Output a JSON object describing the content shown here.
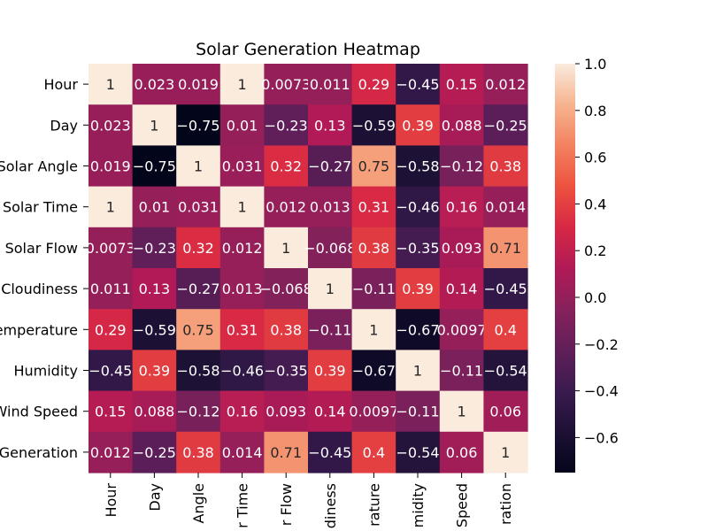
{
  "chart_data": {
    "type": "heatmap",
    "title": "Solar Generation Heatmap",
    "row_labels": [
      "Hour",
      "Day",
      "Solar Angle",
      "Solar Time",
      "Solar Flow",
      "Cloudiness",
      "Temperature",
      "Humidity",
      "Wind Speed",
      "Generation"
    ],
    "col_labels": [
      "Hour",
      "Day",
      "Angle",
      "r Time",
      "r Flow",
      "diness",
      "rature",
      "midity",
      "Speed",
      "ration"
    ],
    "values": [
      [
        1,
        0.023,
        0.019,
        1,
        0.0073,
        0.011,
        0.29,
        -0.45,
        0.15,
        0.012
      ],
      [
        0.023,
        1,
        -0.75,
        0.01,
        -0.23,
        0.13,
        -0.59,
        0.39,
        0.088,
        -0.25
      ],
      [
        0.019,
        -0.75,
        1,
        0.031,
        0.32,
        -0.27,
        0.75,
        -0.58,
        -0.12,
        0.38
      ],
      [
        1,
        0.01,
        0.031,
        1,
        0.012,
        0.013,
        0.31,
        -0.46,
        0.16,
        0.014
      ],
      [
        0.0073,
        -0.23,
        0.32,
        0.012,
        1,
        -0.068,
        0.38,
        -0.35,
        0.093,
        0.71
      ],
      [
        0.011,
        0.13,
        -0.27,
        0.013,
        -0.068,
        1,
        -0.11,
        0.39,
        0.14,
        -0.45
      ],
      [
        0.29,
        -0.59,
        0.75,
        0.31,
        0.38,
        -0.11,
        1,
        -0.67,
        0.0097,
        0.4
      ],
      [
        -0.45,
        0.39,
        -0.58,
        -0.46,
        -0.35,
        0.39,
        -0.67,
        1,
        -0.11,
        -0.54
      ],
      [
        0.15,
        0.088,
        -0.12,
        0.16,
        0.093,
        0.14,
        0.0097,
        -0.11,
        1,
        0.06
      ],
      [
        0.012,
        -0.25,
        0.38,
        0.014,
        0.71,
        -0.45,
        0.4,
        -0.54,
        0.06,
        1
      ]
    ],
    "colormap": "rocket",
    "vmin": -0.75,
    "vmax": 1.0,
    "colorbar_ticks": [
      1.0,
      0.8,
      0.6,
      0.4,
      0.2,
      0.0,
      -0.2,
      -0.4,
      -0.6
    ],
    "colorbar_tick_labels": [
      "1.0",
      "0.8",
      "0.6",
      "0.4",
      "0.2",
      "0.0",
      "−0.2",
      "−0.4",
      "−0.6"
    ],
    "annotated": true
  }
}
